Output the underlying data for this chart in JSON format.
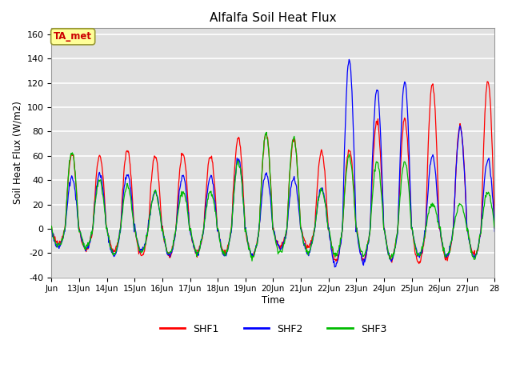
{
  "title": "Alfalfa Soil Heat Flux",
  "ylabel": "Soil Heat Flux (W/m2)",
  "xlabel": "Time",
  "ylim": [
    -40,
    165
  ],
  "yticks": [
    -40,
    -20,
    0,
    20,
    40,
    60,
    80,
    100,
    120,
    140,
    160
  ],
  "plot_bg_color": "#e0e0e0",
  "grid_color": "#ffffff",
  "shf1_color": "#ff0000",
  "shf2_color": "#0000ff",
  "shf3_color": "#00bb00",
  "annotation_text": "TA_met",
  "annotation_color": "#cc0000",
  "annotation_bg": "#ffff99",
  "annotation_edge": "#999933",
  "legend_labels": [
    "SHF1",
    "SHF2",
    "SHF3"
  ],
  "n_days": 16,
  "samples_per_day": 48,
  "shf1_day_amps": [
    62,
    60,
    65,
    60,
    62,
    60,
    75,
    78,
    74,
    63,
    65,
    88,
    90,
    120,
    85,
    122
  ],
  "shf1_night_amps": [
    12,
    18,
    18,
    22,
    22,
    20,
    20,
    22,
    15,
    15,
    26,
    25,
    25,
    28,
    25,
    22
  ],
  "shf2_day_amps": [
    42,
    45,
    45,
    30,
    43,
    43,
    57,
    45,
    42,
    33,
    140,
    115,
    121,
    60,
    84,
    57
  ],
  "shf2_night_amps": [
    15,
    16,
    22,
    18,
    22,
    20,
    22,
    23,
    17,
    20,
    30,
    27,
    26,
    22,
    22,
    23
  ],
  "shf3_day_amps": [
    64,
    40,
    35,
    30,
    30,
    30,
    55,
    78,
    75,
    32,
    60,
    55,
    55,
    20,
    20,
    30
  ],
  "shf3_night_amps": [
    14,
    15,
    21,
    19,
    21,
    20,
    21,
    23,
    20,
    20,
    22,
    22,
    25,
    22,
    22,
    24
  ]
}
